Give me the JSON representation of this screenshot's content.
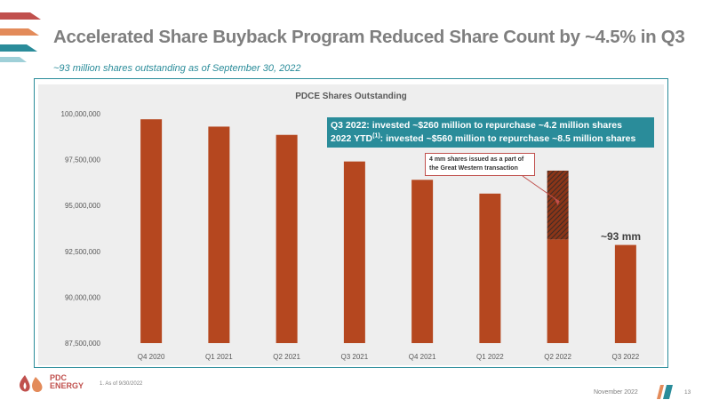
{
  "slide": {
    "title": "Accelerated Share Buyback Program Reduced Share Count by ~4.5% in Q3",
    "subtitle": "~93 million shares outstanding as of September 30, 2022",
    "footnote": "1. As of 9/30/2022",
    "footer_date": "November 2022",
    "page_number": "13",
    "logo": {
      "line1": "PDC",
      "line2": "ENERGY",
      "icon": "flame-drop-logo-icon"
    }
  },
  "colors": {
    "bar": "#b5471f",
    "hatch_bg": "#8a3518",
    "hatch_line": "#3a2a26",
    "accent_teal": "#2a8c9a",
    "title_gray": "#7f7f7f",
    "note_border": "#c0504d"
  },
  "callout": {
    "line1": "Q3 2022: invested ~$260 million to repurchase ~4.2 million shares",
    "line2_prefix": "2022 YTD",
    "line2_sup": "(1)",
    "line2_suffix": ": invested ~$560 million to repurchase ~8.5 million shares"
  },
  "note": {
    "text": "4 mm shares issued as a part of the Great Western transaction"
  },
  "last_bar_label": "~93 mm",
  "chart_data": {
    "type": "bar",
    "title": "PDCE Shares Outstanding",
    "xlabel": "",
    "ylabel": "",
    "categories": [
      "Q4 2020",
      "Q1 2021",
      "Q2 2021",
      "Q3 2021",
      "Q4 2021",
      "Q1 2022",
      "Q2 2022",
      "Q3 2022"
    ],
    "values": [
      99700000,
      99300000,
      98850000,
      97400000,
      96400000,
      95650000,
      96900000,
      92850000
    ],
    "ylim": [
      87500000,
      100000000
    ],
    "yticks": [
      87500000,
      90000000,
      92500000,
      95000000,
      97500000,
      100000000
    ],
    "ytick_labels": [
      "87,500,000",
      "90,000,000",
      "92,500,000",
      "95,000,000",
      "97,500,000",
      "100,000,000"
    ],
    "hatched_segment": {
      "category": "Q2 2022",
      "from": 93150000,
      "to": 96900000
    },
    "grid": false,
    "legend": "none"
  }
}
